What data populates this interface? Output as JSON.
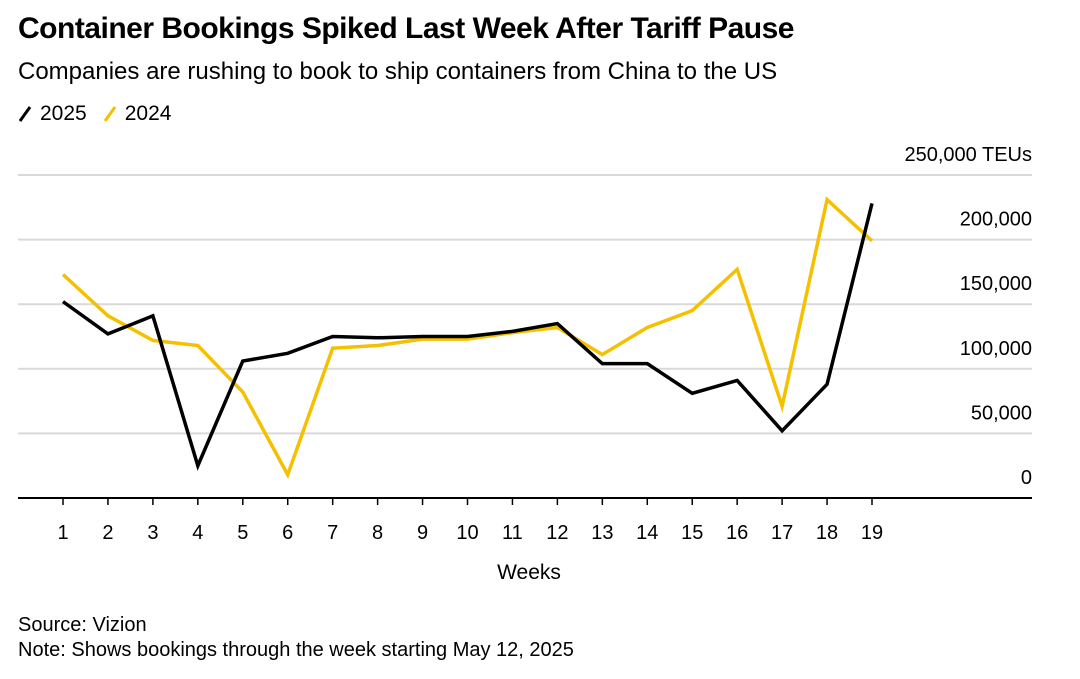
{
  "chart_data": {
    "type": "line",
    "title": "Container Bookings Spiked Last Week After Tariff Pause",
    "subtitle": "Companies are rushing to book to ship containers from China to the US",
    "xlabel": "Weeks",
    "ylabel": "TEUs",
    "x": [
      1,
      2,
      3,
      4,
      5,
      6,
      7,
      8,
      9,
      10,
      11,
      12,
      13,
      14,
      15,
      16,
      17,
      18,
      19
    ],
    "ylim": [
      0,
      250000
    ],
    "yticks": [
      0,
      50000,
      100000,
      150000,
      200000,
      250000
    ],
    "ytick_labels": [
      "0",
      "50,000",
      "100,000",
      "150,000",
      "200,000",
      "250,000 TEUs"
    ],
    "grid": true,
    "legend_position": "top-left",
    "series": [
      {
        "name": "2025",
        "color": "#000000",
        "values": [
          152000,
          127000,
          141000,
          25000,
          106000,
          112000,
          125000,
          124000,
          125000,
          125000,
          129000,
          135000,
          104000,
          104000,
          81000,
          91000,
          52000,
          88000,
          228000
        ]
      },
      {
        "name": "2024",
        "color": "#F5C000",
        "values": [
          173000,
          141000,
          122000,
          118000,
          82000,
          18000,
          116000,
          118000,
          123000,
          123000,
          128000,
          132000,
          111000,
          132000,
          145000,
          177000,
          71000,
          231000,
          199000
        ]
      }
    ]
  },
  "source": "Source: Vizion",
  "note": "Note: Shows bookings through the week starting May 12, 2025"
}
